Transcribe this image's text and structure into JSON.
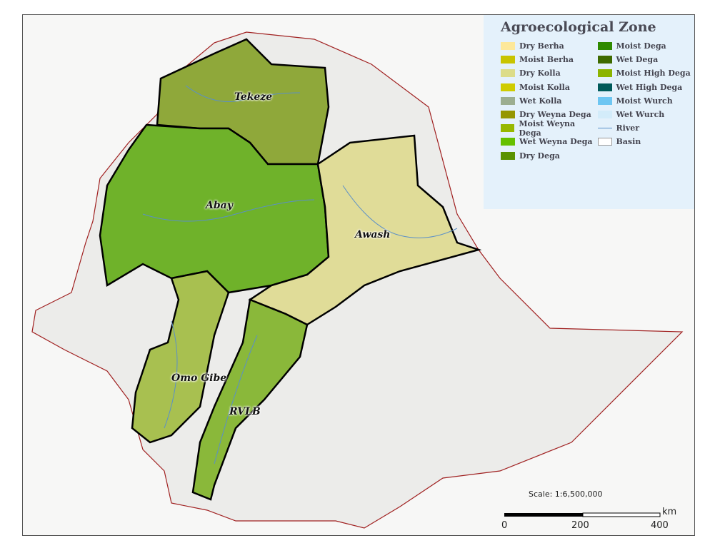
{
  "legend": {
    "title": "Agroecological Zone",
    "items": [
      {
        "label": "Dry Berha",
        "color": "#fde89a"
      },
      {
        "label": "Moist Berha",
        "color": "#c8c400"
      },
      {
        "label": "Dry Kolla",
        "color": "#dcdc88"
      },
      {
        "label": "Moist Kolla",
        "color": "#cfcc00"
      },
      {
        "label": "Wet Kolla",
        "color": "#9cae90"
      },
      {
        "label": "Dry Weyna Dega",
        "color": "#959600"
      },
      {
        "label": "Moist Weyna Dega",
        "color": "#97b800"
      },
      {
        "label": "Wet Weyna Dega",
        "color": "#66c000"
      },
      {
        "label": "Dry Dega",
        "color": "#5a9200"
      },
      {
        "label": "Moist Dega",
        "color": "#2f8a00"
      },
      {
        "label": "Wet Dega",
        "color": "#3e6a00"
      },
      {
        "label": "Moist High Dega",
        "color": "#8cb400"
      },
      {
        "label": "Wet High Dega",
        "color": "#005a5a"
      },
      {
        "label": "Moist Wurch",
        "color": "#6ec6f2"
      },
      {
        "label": "Wet Wurch",
        "color": "#d3ecfa"
      },
      {
        "label": "River",
        "color": "#5a8fc8",
        "symbol": "line"
      },
      {
        "label": "Basin",
        "color": "#ffffff",
        "symbol": "box"
      }
    ]
  },
  "basins": {
    "tekeze": "Tekeze",
    "abay": "Abay",
    "awash": "Awash",
    "omo": "Omo Gibe",
    "rvlb": "RVLB"
  },
  "scale": {
    "text": "Scale: 1:6,500,000",
    "unit": "km",
    "ticks": [
      "0",
      "200",
      "400"
    ]
  }
}
